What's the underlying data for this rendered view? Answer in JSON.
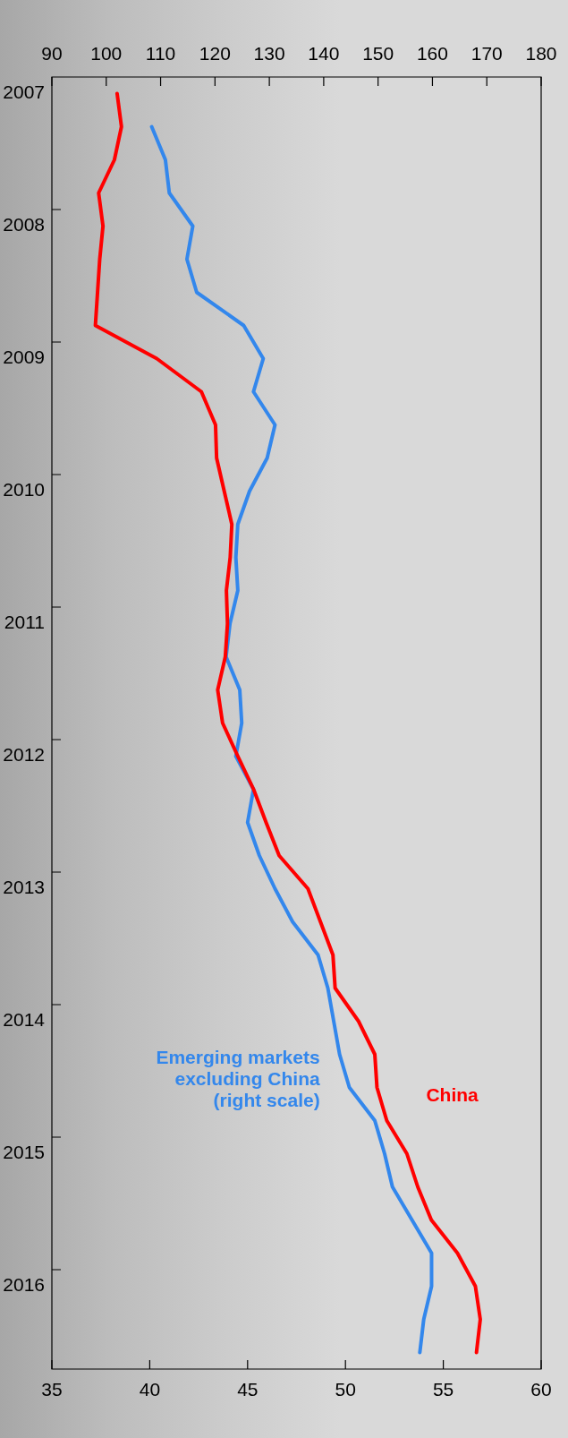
{
  "chart_data": {
    "type": "line",
    "orientation": "horizontal",
    "categories": [
      "2007",
      null,
      null,
      null,
      "2008",
      null,
      null,
      null,
      "2009",
      null,
      null,
      null,
      "2010",
      null,
      null,
      null,
      "2011",
      null,
      null,
      null,
      "2012",
      null,
      null,
      null,
      "2013",
      null,
      null,
      null,
      "2014",
      null,
      null,
      null,
      "2015",
      null,
      null,
      null,
      "2016",
      null,
      null
    ],
    "series": [
      {
        "name": "China",
        "color": "#ff0000",
        "axis": "x2",
        "values": [
          102.0,
          102.8,
          101.5,
          98.6,
          99.4,
          98.8,
          98.4,
          98.0,
          109.3,
          117.5,
          120.1,
          120.3,
          121.7,
          123.1,
          122.8,
          122.1,
          122.3,
          121.9,
          120.5,
          121.4,
          124.2,
          127.1,
          129.4,
          131.8,
          137.1,
          139.4,
          141.7,
          142.1,
          146.4,
          149.4,
          149.8,
          151.6,
          155.3,
          157.3,
          159.8,
          164.6,
          167.9,
          168.8,
          168.1
        ]
      },
      {
        "name": "Emerging markets excluding China (right scale)",
        "color": "#3387ec",
        "values": [
          null,
          40.1,
          40.8,
          41.0,
          42.2,
          41.9,
          42.4,
          44.8,
          45.8,
          45.3,
          46.4,
          46.0,
          45.1,
          44.5,
          44.4,
          44.5,
          44.1,
          43.9,
          44.6,
          44.7,
          44.4,
          45.3,
          45.0,
          45.6,
          46.4,
          47.3,
          48.6,
          49.1,
          49.4,
          49.7,
          50.2,
          51.5,
          52.0,
          52.4,
          53.4,
          54.4,
          54.4,
          54.0,
          53.8
        ]
      }
    ],
    "xlim": [
      35,
      60
    ],
    "xticks": [
      35,
      40,
      45,
      50,
      55,
      60
    ],
    "x2lim": [
      90,
      180
    ],
    "x2ticks": [
      90,
      100,
      110,
      120,
      130,
      140,
      150,
      160,
      170,
      180
    ]
  }
}
